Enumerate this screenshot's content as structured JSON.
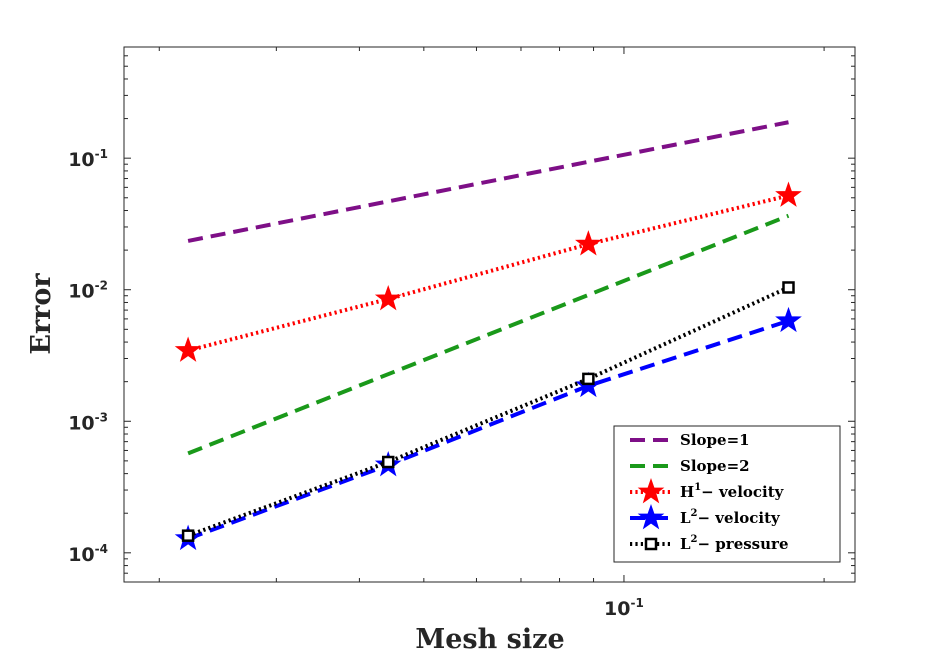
{
  "chart_data": {
    "type": "line",
    "scale": "log-log",
    "xlabel": "Mesh size",
    "ylabel": "Error",
    "xlim": [
      0.0177,
      0.2226
    ],
    "ylim": [
      6e-05,
      0.7
    ],
    "xticks": [
      {
        "value": 0.1,
        "base": "10",
        "exp": "-1"
      }
    ],
    "yticks": [
      {
        "value": 0.0001,
        "base": "10",
        "exp": "-4"
      },
      {
        "value": 0.001,
        "base": "10",
        "exp": "-3"
      },
      {
        "value": 0.01,
        "base": "10",
        "exp": "-2"
      },
      {
        "value": 0.1,
        "base": "10",
        "exp": "-1"
      }
    ],
    "legend_position": "bottom-right",
    "series": [
      {
        "name": "Slope=1",
        "label_main": "Slope=1",
        "label_sup": "",
        "label_rest": "",
        "color": "#7e0f87",
        "dash": "long",
        "marker": "none",
        "x": [
          0.0221,
          0.1768
        ],
        "y": [
          0.0235,
          0.1875
        ]
      },
      {
        "name": "Slope=2",
        "label_main": "Slope=2",
        "label_sup": "",
        "label_rest": "",
        "color": "#1a991a",
        "dash": "long",
        "marker": "none",
        "x": [
          0.0221,
          0.1768
        ],
        "y": [
          0.00057,
          0.0365
        ]
      },
      {
        "name": "H1- velocity",
        "label_main": "H",
        "label_sup": "1",
        "label_rest": "− velocity",
        "color": "#ff0000",
        "dash": "dotted",
        "marker": "star",
        "x": [
          0.0221,
          0.0442,
          0.0884,
          0.1768
        ],
        "y": [
          0.00345,
          0.0085,
          0.0222,
          0.052
        ]
      },
      {
        "name": "L2- velocity",
        "label_main": "L",
        "label_sup": "2",
        "label_rest": "− velocity",
        "color": "#0000ff",
        "dash": "long",
        "marker": "star",
        "x": [
          0.0221,
          0.0442,
          0.0884,
          0.1768
        ],
        "y": [
          0.000128,
          0.000465,
          0.00186,
          0.0058
        ]
      },
      {
        "name": "L2- pressure",
        "label_main": "L",
        "label_sup": "2",
        "label_rest": "− pressure",
        "color": "#000000",
        "dash": "dotted",
        "marker": "square",
        "x": [
          0.0221,
          0.0442,
          0.0884,
          0.1768
        ],
        "y": [
          0.000135,
          0.00049,
          0.0021,
          0.0104
        ]
      }
    ]
  }
}
